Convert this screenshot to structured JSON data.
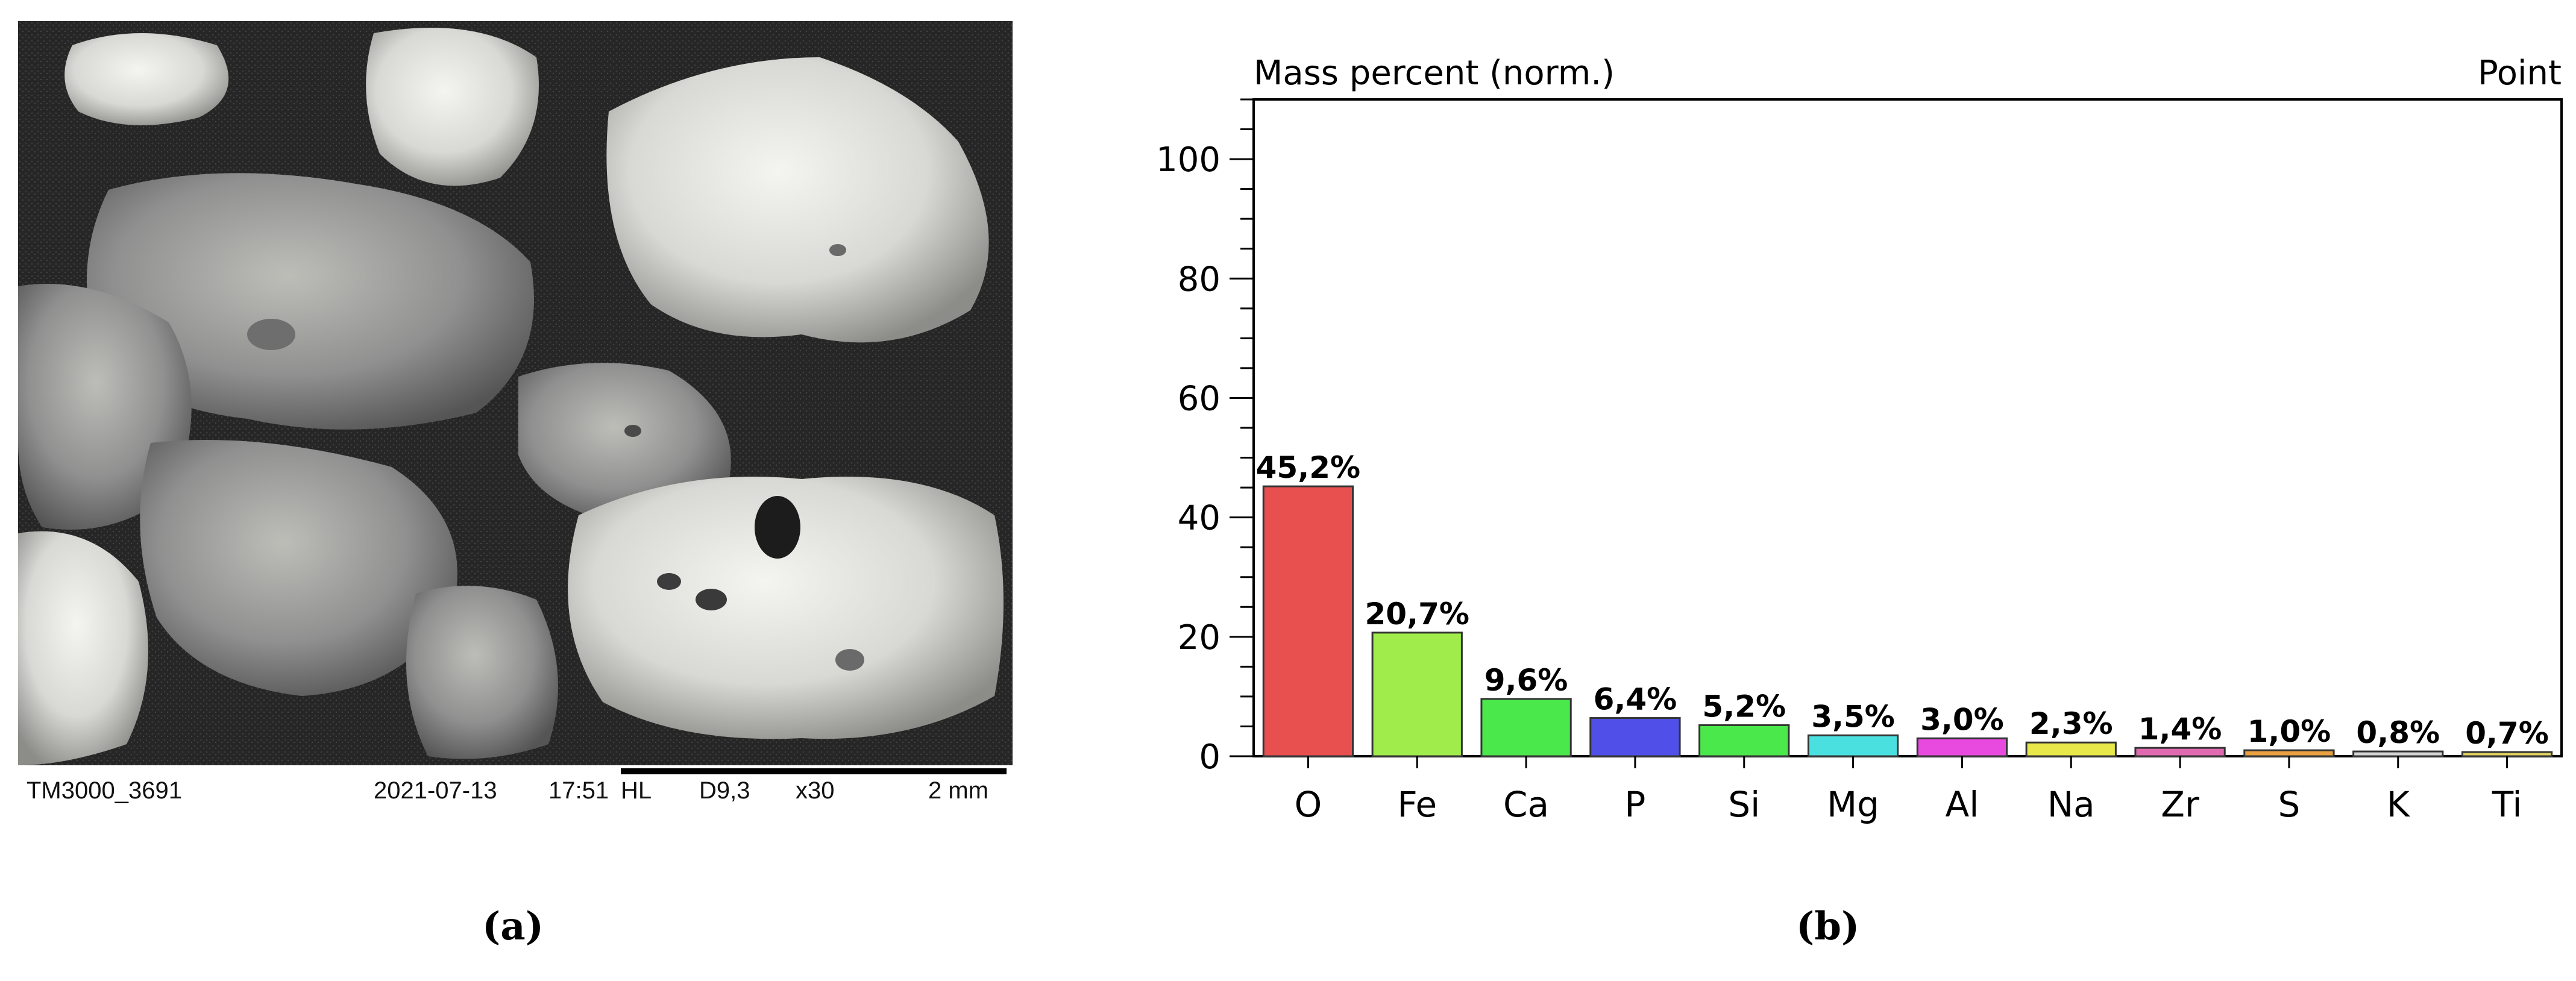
{
  "sem": {
    "image_id": "TM3000_3691",
    "date": "2021-07-13",
    "time": "17:51",
    "mode": "HL",
    "wd": "D9,3",
    "magnification": "x30",
    "scale": "2 mm"
  },
  "captions": {
    "a": "(a)",
    "b": "(b)"
  },
  "chart_data": {
    "type": "bar",
    "title": "Mass percent (norm.)",
    "corner_label": "Point",
    "xlabel": "",
    "ylabel": "",
    "ylim": [
      0,
      110
    ],
    "yticks": [
      0,
      20,
      40,
      60,
      80,
      100
    ],
    "grid": false,
    "categories": [
      "O",
      "Fe",
      "Ca",
      "P",
      "Si",
      "Mg",
      "Al",
      "Na",
      "Zr",
      "S",
      "K",
      "Ti"
    ],
    "values": [
      45.2,
      20.7,
      9.6,
      6.4,
      5.2,
      3.5,
      3.0,
      2.3,
      1.4,
      1.0,
      0.8,
      0.7
    ],
    "labels": [
      "45,2%",
      "20,7%",
      "9,6%",
      "6,4%",
      "5,2%",
      "3,5%",
      "3,0%",
      "2,3%",
      "1,4%",
      "1,0%",
      "0,8%",
      "0,7%"
    ],
    "colors": [
      "#e85050",
      "#a0ec4a",
      "#4ae84a",
      "#5050e8",
      "#4ae84a",
      "#4ae0e0",
      "#e84ae0",
      "#e8e84a",
      "#e06ab0",
      "#e8a040",
      "#d4d4d4",
      "#e0d060"
    ]
  }
}
